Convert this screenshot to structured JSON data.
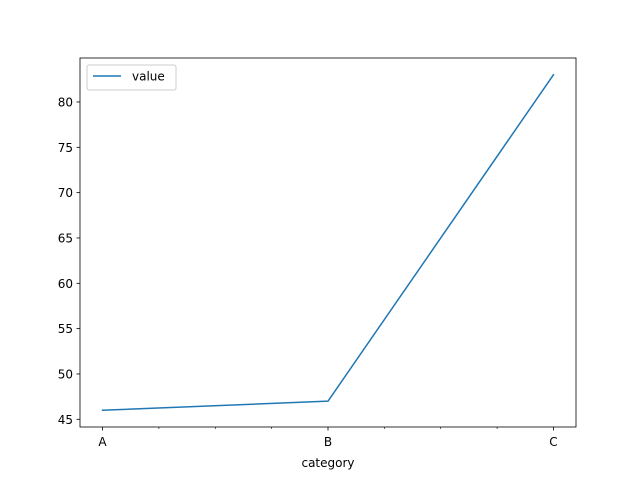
{
  "chart_data": {
    "type": "line",
    "categories": [
      "A",
      "B",
      "C"
    ],
    "series": [
      {
        "name": "value",
        "values": [
          46,
          47,
          83
        ],
        "color": "#1f77b4"
      }
    ],
    "title": "",
    "xlabel": "category",
    "ylabel": "",
    "ylim": [
      44.15,
      84.85
    ],
    "yticks": [
      45,
      50,
      55,
      60,
      65,
      70,
      75,
      80
    ],
    "x_minor_ticks": [
      0.25,
      0.5,
      0.75,
      1.25,
      1.5,
      1.75
    ],
    "grid": false,
    "legend_position": "upper-left"
  }
}
